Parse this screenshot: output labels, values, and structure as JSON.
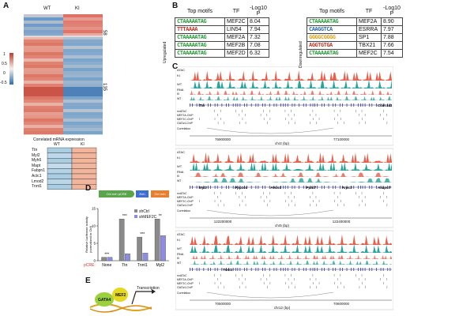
{
  "panelA": {
    "label": "A",
    "col_wt": "WT",
    "col_ki": "KI",
    "row_count_top": "58",
    "row_count_bottom": "135",
    "colorbar_ticks": [
      "1",
      "0.5",
      "0",
      "-0.5"
    ],
    "heatmap_caption": "Correlated mRNA expression",
    "gene_col_wt": "WT",
    "gene_col_ki": "KI",
    "genes": [
      "Ttn",
      "Myl2",
      "Myh6",
      "Mapt",
      "Fabpn1",
      "Actc1",
      "Lmod2",
      "Tnnt1"
    ],
    "colors": {
      "red": "#d9564a",
      "blue": "#3d7fb8",
      "light_red": "#f2b49b",
      "light_blue": "#a9cde3"
    }
  },
  "panelB": {
    "label": "B",
    "up_label": "Upregulated",
    "down_label": "Downregulated",
    "hdr_motif": "Top motifs",
    "hdr_tf": "TF",
    "hdr_p": "-Log10 P",
    "up": [
      {
        "logo": "CTAAAAATAG",
        "tf": "MEF2C",
        "p": "8.04"
      },
      {
        "logo": "TTTAAAA",
        "tf": "LIN54",
        "p": "7.94"
      },
      {
        "logo": "CTAAAAATAG",
        "tf": "MEF2A",
        "p": "7.32"
      },
      {
        "logo": "CTAAAAATAG",
        "tf": "MEF2B",
        "p": "7.08"
      },
      {
        "logo": "CTAAAAATAG",
        "tf": "MEF2D",
        "p": "6.32"
      }
    ],
    "down": [
      {
        "logo": "CTAAAAATAG",
        "tf": "MEF2A",
        "p": "8.90"
      },
      {
        "logo": "CAAGGTCA",
        "tf": "ESRRA",
        "p": "7.97"
      },
      {
        "logo": "GGGGCGGGG",
        "tf": "SP1",
        "p": "7.88"
      },
      {
        "logo": "AGGTGTGA",
        "tf": "TBX21",
        "p": "7.66"
      },
      {
        "logo": "CTAAAAATAG",
        "tf": "MEF2C",
        "p": "7.54"
      }
    ]
  },
  "panelC": {
    "label": "C",
    "track_labels": {
      "atac": "ATAC",
      "rna": "RNA",
      "ki": "KI",
      "wt": "WT"
    },
    "annot_labels": [
      "snATAC",
      "MEF2A-ChIP",
      "MEF2C-ChIP",
      "GATA4-ChIP"
    ],
    "corr_label": "Correlation",
    "loci": [
      {
        "genes": [
          "Ttn",
          "Ccdc141"
        ],
        "ticks": [
          "76900000",
          "77100000"
        ],
        "chr": "chr2 (bp)"
      },
      {
        "genes": [
          "Myl2",
          "Ppp1cc",
          "Hvcn1",
          "Pptc7",
          "Arpc3",
          "Anapc7"
        ],
        "ticks": [
          "122200000",
          "122400000"
        ],
        "chr": "chr5 (bp)"
      },
      {
        "genes": [
          "Tnnt1"
        ],
        "ticks": [
          "70500000",
          "70600000"
        ],
        "chr": "chr12 (bp)"
      }
    ],
    "colors": {
      "ki": "#e8604c",
      "wt": "#2aa39a"
    }
  },
  "panelD": {
    "label": "D",
    "construct": {
      "left": "Ctrl enh pCRE",
      "mid": "Enh",
      "right": "Ctrl enh pCRE"
    },
    "ylabel": "Relative luciferase activity (normalized to Ctrl)",
    "legend": [
      "shCtrl",
      "shMEF2C"
    ],
    "xlabel_prefix": "pCRE:",
    "significance": [
      "***",
      "***",
      "***",
      "**"
    ]
  },
  "panelE": {
    "label": "E",
    "gata4": "GATA4",
    "mef2": "MEF2",
    "transcription": "Transcription"
  },
  "chart_data": {
    "type": "bar",
    "categories": [
      "None",
      "Ttn",
      "Tnnt1",
      "Myl2"
    ],
    "series": [
      {
        "name": "shCtrl",
        "values": [
          1,
          12,
          6.8,
          12
        ]
      },
      {
        "name": "shMEF2C",
        "values": [
          1,
          2,
          2.2,
          7.2
        ]
      }
    ],
    "ylim": [
      0,
      15
    ],
    "yticks": [
      0,
      5,
      10,
      15
    ],
    "colors": [
      "#8a8a8a",
      "#8c8de0"
    ]
  }
}
